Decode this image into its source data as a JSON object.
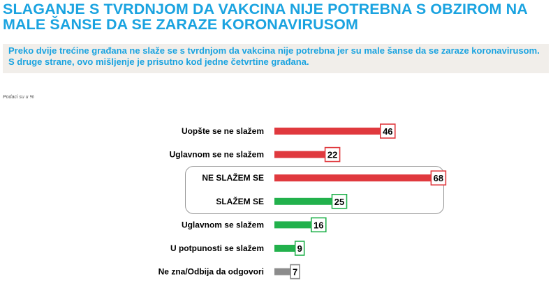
{
  "header": {
    "title": "SLAGANJE S TVRDNJOM DA VAKCINA NIJE POTREBNA S OBZIROM NA MALE ŠANSE DA SE ZARAZE KORONAVIRUSOM",
    "subtitle": "Preko dvije trećine građana ne slaže se s tvrdnjom da vakcina nije potrebna jer su male šanse da se zaraze koronavirusom. S druge strane, ovo mišljenje je prisutno kod jedne četvrtine građana.",
    "note": "Podaci su u %"
  },
  "chart_data": {
    "type": "bar",
    "orientation": "horizontal",
    "categories": [
      "Uopšte se ne slažem",
      "Uglavnom se ne slažem",
      "NE SLAŽEM SE",
      "SLAŽEM SE",
      "Uglavnom se slažem",
      "U potpunosti se slažem",
      "Ne zna/Odbija da odgovori"
    ],
    "values": [
      46,
      22,
      68,
      25,
      16,
      9,
      7
    ],
    "bar_colors": [
      "#e0393e",
      "#e0393e",
      "#e0393e",
      "#22b14c",
      "#22b14c",
      "#22b14c",
      "#8c8c8c"
    ],
    "xlim": [
      0,
      100
    ],
    "grid": false,
    "highlight_group": [
      "NE SLAŽEM SE",
      "SLAŽEM SE"
    ]
  }
}
